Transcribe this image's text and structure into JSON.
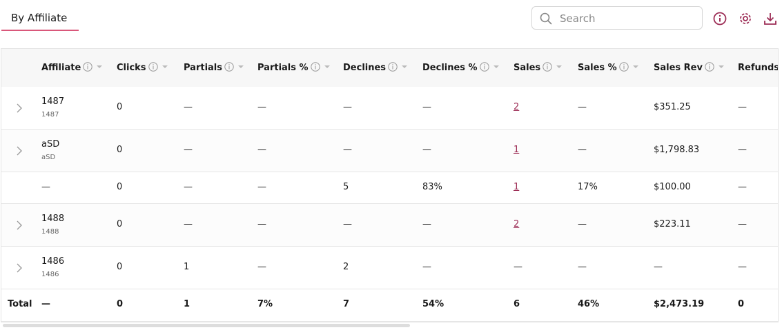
{
  "tab": "By Affiliate",
  "search": {
    "placeholder": "Search"
  },
  "table": {
    "columns": [
      "Affiliate",
      "Clicks",
      "Partials",
      "Partials %",
      "Declines",
      "Declines %",
      "Sales",
      "Sales %",
      "Sales Rev",
      "Refunds"
    ],
    "rows": [
      {
        "name": "1487",
        "sub": "1487",
        "cells": [
          "0",
          "—",
          "—",
          "—",
          "—",
          "2",
          "—",
          "$351.25",
          "—"
        ]
      },
      {
        "name": "aSD",
        "sub": "aSD",
        "cells": [
          "0",
          "—",
          "—",
          "—",
          "—",
          "1",
          "—",
          "$1,798.83",
          "—"
        ]
      },
      {
        "name": "—",
        "cells": [
          "0",
          "—",
          "—",
          "5",
          "83%",
          "1",
          "17%",
          "$100.00",
          "—"
        ]
      },
      {
        "name": "1488",
        "sub": "1488",
        "cells": [
          "0",
          "—",
          "—",
          "—",
          "—",
          "2",
          "—",
          "$223.11",
          "—"
        ]
      },
      {
        "name": "1486",
        "sub": "1486",
        "cells": [
          "0",
          "1",
          "—",
          "2",
          "—",
          "—",
          "—",
          "—",
          "—"
        ]
      }
    ],
    "total": {
      "label": "Total",
      "cells": [
        "—",
        "0",
        "1",
        "7%",
        "7",
        "54%",
        "6",
        "46%",
        "$2,473.19",
        "0"
      ]
    }
  }
}
